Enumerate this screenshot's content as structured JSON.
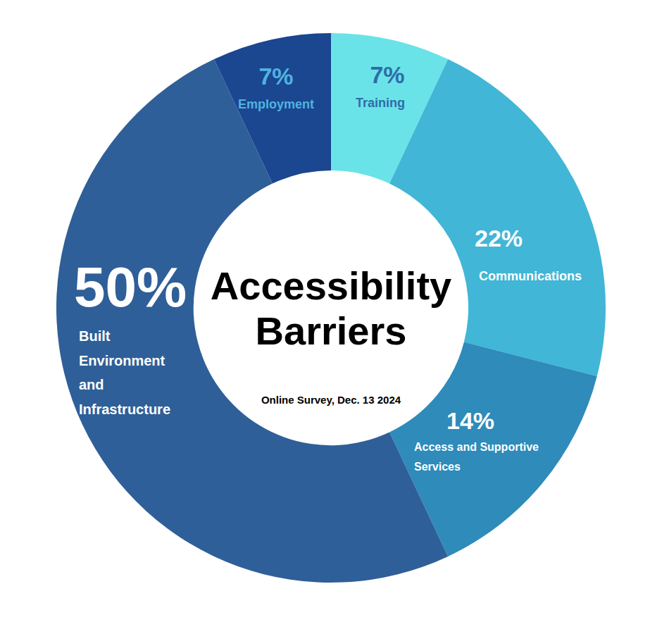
{
  "chart_data": {
    "type": "pie",
    "title": "Accessibility Barriers",
    "subtitle": "Online Survey, Dec. 13 2024",
    "categories": [
      "Training",
      "Communications",
      "Access and Supportive Services",
      "Built Environment and Infrastructure",
      "Employment"
    ],
    "values": [
      7,
      22,
      14,
      50,
      7
    ],
    "value_labels": [
      "7%",
      "22%",
      "14%",
      "50%",
      "7%"
    ],
    "colors": [
      "#6ae3e8",
      "#41b6d6",
      "#2e8bba",
      "#2f5f98",
      "#1b4690"
    ],
    "data_labels": true
  }
}
